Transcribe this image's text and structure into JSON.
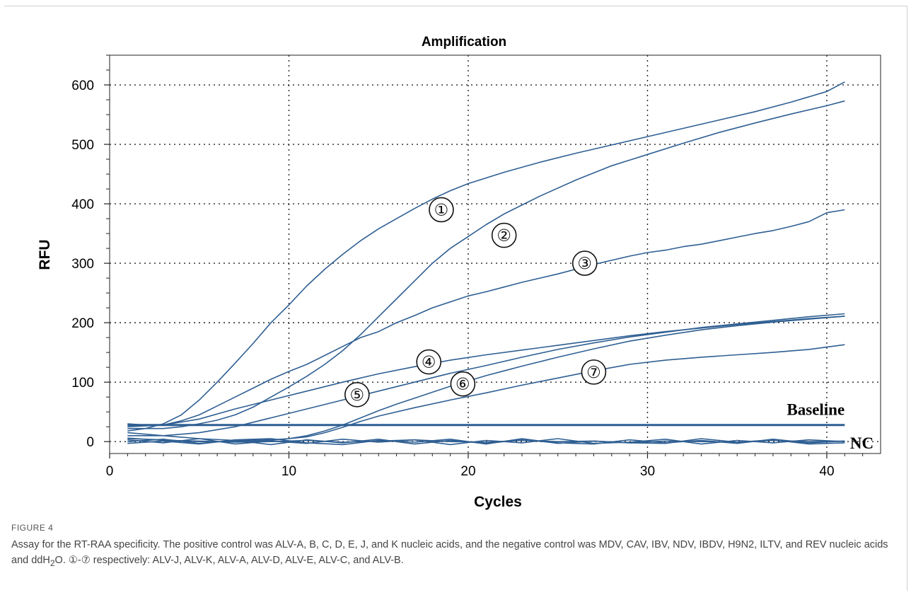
{
  "figure": {
    "label": "FIGURE 4",
    "caption_pre": "Assay for the RT-RAA specificity. The positive control was ALV-A, B, C, D, E, J, and K nucleic acids, and the negative control was MDV, CAV, IBV, NDV, IBDV, H9N2, ILTV, and REV nucleic acids and ddH",
    "caption_sub": "2",
    "caption_post": "O. ①-⑦ respectively: ALV-J, ALV-K, ALV-A, ALV-D, ALV-E, ALV-C, and ALV-B."
  },
  "chart_data": {
    "type": "line",
    "title": "Amplification",
    "xlabel": "Cycles",
    "ylabel": "RFU",
    "xlim": [
      0,
      43
    ],
    "ylim": [
      -20,
      650
    ],
    "xticks": [
      0,
      10,
      20,
      30,
      40
    ],
    "yticks": [
      0,
      100,
      200,
      300,
      400,
      500,
      600
    ],
    "grid": true,
    "series": [
      {
        "label": "①",
        "label_at": [
          18.5,
          390
        ],
        "x": [
          1,
          2,
          3,
          4,
          5,
          6,
          7,
          8,
          9,
          10,
          11,
          12,
          13,
          14,
          15,
          16,
          17,
          18,
          19,
          20,
          22,
          24,
          26,
          28,
          30,
          32,
          34,
          36,
          38,
          40,
          41
        ],
        "y": [
          18,
          22,
          30,
          45,
          70,
          100,
          132,
          165,
          200,
          230,
          262,
          290,
          315,
          338,
          358,
          375,
          392,
          408,
          422,
          434,
          453,
          470,
          485,
          499,
          513,
          527,
          541,
          555,
          571,
          589,
          605
        ]
      },
      {
        "label": "②",
        "label_at": [
          22,
          347
        ],
        "x": [
          1,
          2,
          3,
          4,
          5,
          6,
          7,
          8,
          9,
          10,
          11,
          12,
          13,
          14,
          15,
          16,
          17,
          18,
          19,
          20,
          21,
          22,
          24,
          26,
          28,
          30,
          32,
          34,
          36,
          38,
          40,
          41
        ],
        "y": [
          22,
          22,
          22,
          25,
          30,
          36,
          45,
          58,
          75,
          92,
          110,
          130,
          153,
          180,
          210,
          240,
          270,
          300,
          325,
          345,
          365,
          383,
          413,
          440,
          464,
          483,
          502,
          520,
          536,
          551,
          565,
          573
        ]
      },
      {
        "label": "③",
        "label_at": [
          26.5,
          300
        ],
        "x": [
          1,
          2,
          3,
          4,
          5,
          6,
          7,
          8,
          9,
          10,
          11,
          12,
          13,
          14,
          15,
          16,
          17,
          18,
          19,
          20,
          21,
          22,
          23,
          24,
          25,
          26,
          27,
          28,
          29,
          30,
          31,
          32,
          33,
          34,
          35,
          36,
          37,
          38,
          39,
          40,
          41
        ],
        "y": [
          30,
          28,
          28,
          35,
          45,
          60,
          75,
          90,
          105,
          118,
          130,
          145,
          160,
          175,
          185,
          200,
          212,
          225,
          235,
          245,
          252,
          260,
          268,
          275,
          282,
          290,
          298,
          305,
          312,
          318,
          322,
          328,
          332,
          338,
          344,
          350,
          355,
          362,
          370,
          385,
          390
        ]
      },
      {
        "label": "④",
        "label_at": [
          17.8,
          134
        ],
        "x": [
          1,
          3,
          5,
          7,
          9,
          11,
          13,
          15,
          17,
          19,
          21,
          23,
          25,
          27,
          29,
          31,
          33,
          35,
          37,
          39,
          41
        ],
        "y": [
          25,
          28,
          38,
          55,
          70,
          85,
          100,
          114,
          126,
          137,
          146,
          154,
          162,
          170,
          178,
          185,
          191,
          197,
          202,
          207,
          211
        ]
      },
      {
        "label": "⑤",
        "label_at": [
          13.8,
          79
        ],
        "x": [
          1,
          3,
          5,
          7,
          9,
          11,
          13,
          15,
          17,
          19,
          21,
          23,
          25,
          27,
          29,
          31,
          33,
          35,
          37,
          39,
          41
        ],
        "y": [
          10,
          10,
          15,
          25,
          40,
          55,
          70,
          85,
          100,
          115,
          128,
          142,
          155,
          166,
          176,
          184,
          192,
          198,
          204,
          210,
          215
        ]
      },
      {
        "label": "⑥",
        "label_at": [
          19.7,
          97
        ],
        "x": [
          1,
          3,
          5,
          7,
          9,
          10,
          11,
          12,
          13,
          14,
          15,
          16,
          17,
          18,
          19,
          20,
          21,
          22,
          23,
          25,
          27,
          29,
          31,
          33,
          35,
          37,
          39,
          41
        ],
        "y": [
          15,
          10,
          5,
          2,
          3,
          5,
          10,
          18,
          28,
          40,
          52,
          63,
          73,
          83,
          93,
          102,
          111,
          119,
          127,
          142,
          156,
          169,
          179,
          188,
          195,
          201,
          206,
          211
        ]
      },
      {
        "label": "⑦",
        "label_at": [
          27,
          117
        ],
        "x": [
          1,
          3,
          5,
          7,
          9,
          11,
          12,
          13,
          14,
          15,
          17,
          19,
          21,
          23,
          25,
          27,
          29,
          31,
          33,
          35,
          37,
          39,
          41
        ],
        "y": [
          5,
          3,
          0,
          0,
          2,
          8,
          15,
          24,
          34,
          43,
          57,
          70,
          82,
          95,
          107,
          119,
          130,
          137,
          142,
          146,
          150,
          155,
          163
        ]
      },
      {
        "label": "",
        "x": [
          1,
          41
        ],
        "y": [
          28,
          28
        ]
      },
      {
        "label": "",
        "x": [
          1,
          3,
          5,
          7,
          9,
          11,
          13,
          15,
          17,
          19,
          21,
          23,
          25,
          27,
          29,
          31,
          33,
          35,
          37,
          39,
          41
        ],
        "y": [
          0,
          4,
          -3,
          2,
          -5,
          3,
          -2,
          4,
          -4,
          2,
          -3,
          3,
          -2,
          -4,
          3,
          -2,
          2,
          -3,
          4,
          -2,
          1
        ]
      },
      {
        "label": "",
        "x": [
          1,
          3,
          5,
          7,
          9,
          11,
          13,
          15,
          17,
          19,
          21,
          23,
          25,
          27,
          29,
          31,
          33,
          35,
          37,
          39,
          41
        ],
        "y": [
          3,
          -2,
          5,
          -4,
          1,
          -3,
          4,
          -1,
          3,
          -5,
          2,
          -2,
          5,
          -3,
          -1,
          4,
          -4,
          2,
          -2,
          3,
          0
        ]
      },
      {
        "label": "",
        "x": [
          1,
          3,
          5,
          7,
          9,
          11,
          13,
          15,
          17,
          19,
          21,
          23,
          25,
          27,
          29,
          31,
          33,
          35,
          37,
          39,
          41
        ],
        "y": [
          -3,
          1,
          -4,
          3,
          5,
          -2,
          -5,
          2,
          -1,
          4,
          -4,
          5,
          -3,
          1,
          -2,
          -3,
          5,
          -1,
          3,
          -4,
          -2
        ]
      },
      {
        "label": "",
        "x": [
          1,
          3,
          5,
          7,
          9,
          11,
          13,
          15,
          17,
          19,
          21,
          23,
          25,
          27,
          29,
          31,
          33,
          35,
          37,
          39,
          41
        ],
        "y": [
          6,
          2,
          1,
          -1,
          0,
          2,
          -1,
          1,
          3,
          0,
          -1,
          2,
          0,
          1,
          -2,
          1,
          0,
          -1,
          2,
          0,
          1
        ]
      }
    ],
    "annotations": [
      {
        "text": "Baseline",
        "at": [
          41,
          45
        ]
      },
      {
        "text": "NC",
        "at": [
          41.3,
          0
        ]
      }
    ],
    "line_color": "#2f5f93"
  }
}
